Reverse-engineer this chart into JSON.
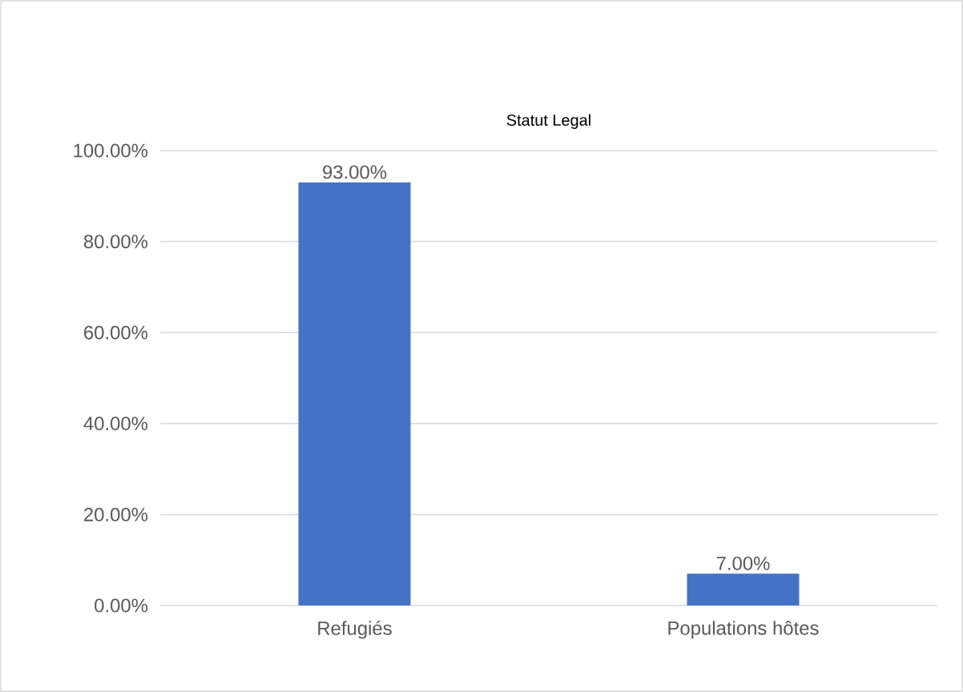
{
  "chart_data": {
    "type": "bar",
    "title": "Statut Legal",
    "categories": [
      "Refugiés",
      "Populations hôtes"
    ],
    "values": [
      93,
      7
    ],
    "value_labels": [
      "93.00%",
      "7.00%"
    ],
    "color": "#4472c4",
    "ylim": [
      0,
      100
    ],
    "yticks": [
      {
        "value": 0,
        "label": "0.00%"
      },
      {
        "value": 20,
        "label": "20.00%"
      },
      {
        "value": 40,
        "label": "40.00%"
      },
      {
        "value": 60,
        "label": "60.00%"
      },
      {
        "value": 80,
        "label": "80.00%"
      },
      {
        "value": 100,
        "label": "100.00%"
      }
    ],
    "grid": "y"
  }
}
